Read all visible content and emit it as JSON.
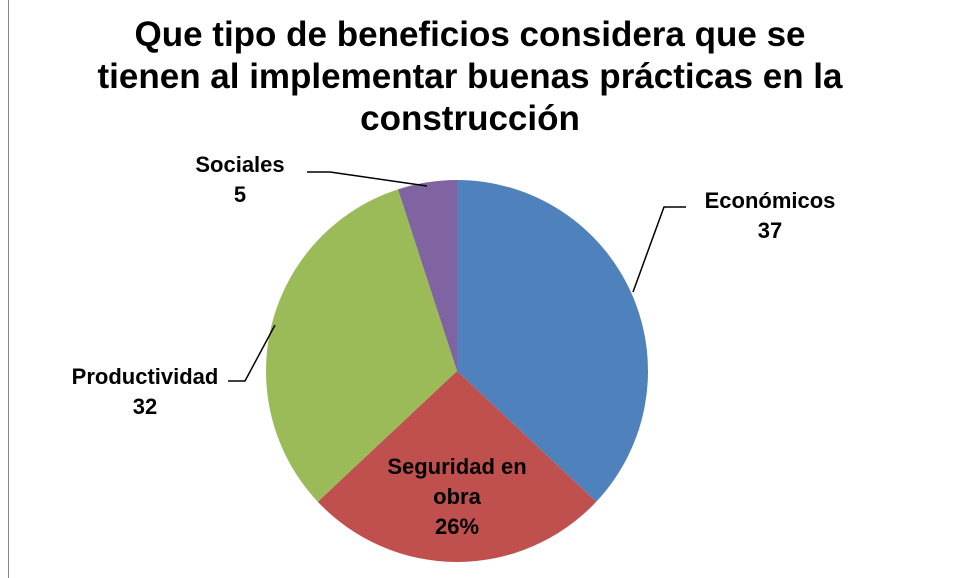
{
  "chart_data": {
    "type": "pie",
    "title": "Que tipo de beneficios considera que se tienen al implementar buenas prácticas en la construcción",
    "categories": [
      "Económicos",
      "Seguridad en obra",
      "Productividad",
      "Sociales"
    ],
    "values": [
      37,
      26,
      32,
      5
    ],
    "value_labels": [
      "37",
      "26%",
      "32",
      "5"
    ],
    "colors": [
      "#4f81bd",
      "#c0504d",
      "#9bbb59",
      "#8064a2"
    ]
  }
}
